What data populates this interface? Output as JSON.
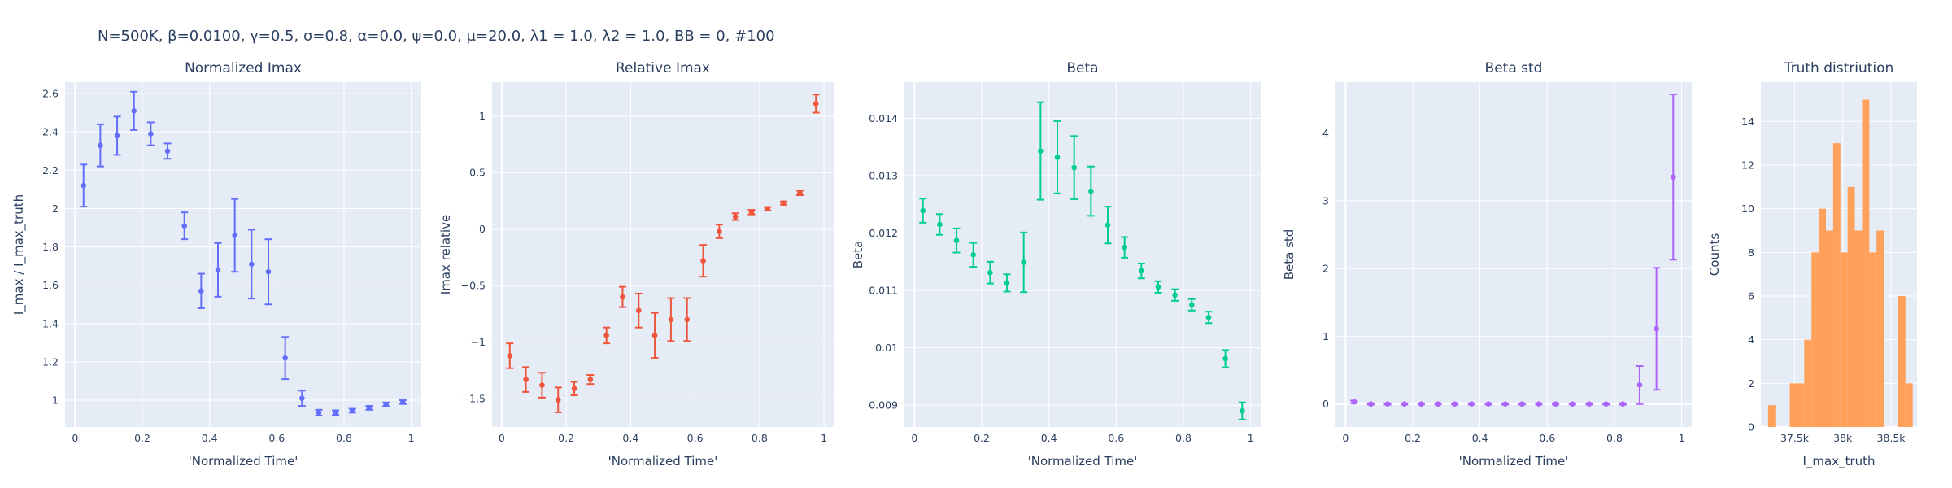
{
  "figure_title": "N=500K, β=0.0100, γ=0.5, σ=0.8,  α=0.0, ψ=0.0, μ=20.0, λ1 = 1.0, λ2 = 1.0, BB = 0, #100",
  "chart_data": [
    {
      "type": "scatter",
      "title": "Normalized Imax",
      "xlabel": "'Normalized Time'",
      "ylabel": "I_max / I_max_truth",
      "color": "#636efa",
      "xlim": [
        -0.03,
        1.03
      ],
      "ylim": [
        0.86,
        2.66
      ],
      "xticks": [
        0,
        0.2,
        0.4,
        0.6,
        0.8,
        1
      ],
      "xtick_labels": [
        "0",
        "0.2",
        "0.4",
        "0.6",
        "0.8",
        "1"
      ],
      "yticks": [
        1,
        1.2,
        1.4,
        1.6,
        1.8,
        2,
        2.2,
        2.4,
        2.6
      ],
      "ytick_labels": [
        "1",
        "1.2",
        "1.4",
        "1.6",
        "1.8",
        "2",
        "2.2",
        "2.4",
        "2.6"
      ],
      "x": [
        0.025,
        0.075,
        0.125,
        0.175,
        0.225,
        0.275,
        0.325,
        0.375,
        0.425,
        0.475,
        0.525,
        0.575,
        0.625,
        0.675,
        0.725,
        0.775,
        0.825,
        0.875,
        0.925,
        0.975
      ],
      "y": [
        2.12,
        2.33,
        2.38,
        2.51,
        2.39,
        2.3,
        1.91,
        1.57,
        1.68,
        1.86,
        1.71,
        1.67,
        1.22,
        1.01,
        0.935,
        0.935,
        0.945,
        0.96,
        0.978,
        0.99
      ],
      "err": [
        0.11,
        0.11,
        0.1,
        0.1,
        0.06,
        0.04,
        0.07,
        0.09,
        0.14,
        0.19,
        0.18,
        0.17,
        0.11,
        0.04,
        0.015,
        0.012,
        0.01,
        0.01,
        0.01,
        0.01
      ]
    },
    {
      "type": "scatter",
      "title": "Relative Imax",
      "xlabel": "'Normalized Time'",
      "ylabel": "Imax relative",
      "color": "#ef553b",
      "xlim": [
        -0.03,
        1.03
      ],
      "ylim": [
        -1.75,
        1.3
      ],
      "xticks": [
        0,
        0.2,
        0.4,
        0.6,
        0.8,
        1
      ],
      "xtick_labels": [
        "0",
        "0.2",
        "0.4",
        "0.6",
        "0.8",
        "1"
      ],
      "yticks": [
        -1.5,
        -1,
        -0.5,
        0,
        0.5,
        1
      ],
      "ytick_labels": [
        "−1.5",
        "−1",
        "−0.5",
        "0",
        "0.5",
        "1"
      ],
      "x": [
        0.025,
        0.075,
        0.125,
        0.175,
        0.225,
        0.275,
        0.325,
        0.375,
        0.425,
        0.475,
        0.525,
        0.575,
        0.625,
        0.675,
        0.725,
        0.775,
        0.825,
        0.875,
        0.925,
        0.975
      ],
      "y": [
        -1.12,
        -1.33,
        -1.38,
        -1.51,
        -1.41,
        -1.33,
        -0.94,
        -0.6,
        -0.72,
        -0.94,
        -0.8,
        -0.8,
        -0.28,
        -0.02,
        0.11,
        0.15,
        0.18,
        0.23,
        0.32,
        1.11
      ],
      "err": [
        0.11,
        0.11,
        0.11,
        0.11,
        0.06,
        0.04,
        0.07,
        0.09,
        0.15,
        0.2,
        0.19,
        0.19,
        0.14,
        0.06,
        0.03,
        0.02,
        0.015,
        0.015,
        0.02,
        0.08
      ]
    },
    {
      "type": "scatter",
      "title": "Beta",
      "xlabel": "'Normalized Time'",
      "ylabel": "Beta",
      "color": "#00cc96",
      "xlim": [
        -0.03,
        1.03
      ],
      "ylim": [
        0.00862,
        0.01463
      ],
      "xticks": [
        0,
        0.2,
        0.4,
        0.6,
        0.8,
        1
      ],
      "xtick_labels": [
        "0",
        "0.2",
        "0.4",
        "0.6",
        "0.8",
        "1"
      ],
      "yticks": [
        0.009,
        0.01,
        0.011,
        0.012,
        0.013,
        0.014
      ],
      "ytick_labels": [
        "0.009",
        "0.01",
        "0.011",
        "0.012",
        "0.013",
        "0.014"
      ],
      "x": [
        0.025,
        0.075,
        0.125,
        0.175,
        0.225,
        0.275,
        0.325,
        0.375,
        0.425,
        0.475,
        0.525,
        0.575,
        0.625,
        0.675,
        0.725,
        0.775,
        0.825,
        0.875,
        0.925,
        0.975
      ],
      "y": [
        0.01239,
        0.01215,
        0.01187,
        0.01162,
        0.01131,
        0.01113,
        0.01149,
        0.01343,
        0.01332,
        0.01314,
        0.01273,
        0.01214,
        0.01175,
        0.01134,
        0.01106,
        0.01092,
        0.01075,
        0.01053,
        0.00981,
        0.0089
      ],
      "err": [
        0.00021,
        0.00018,
        0.00021,
        0.00021,
        0.00019,
        0.00015,
        0.00052,
        0.00085,
        0.00063,
        0.00055,
        0.00043,
        0.00032,
        0.00018,
        0.00013,
        0.0001,
        0.0001,
        0.0001,
        0.0001,
        0.00015,
        0.00015
      ]
    },
    {
      "type": "scatter",
      "title": "Beta std",
      "xlabel": "'Normalized Time'",
      "ylabel": "Beta std",
      "color": "#ab63fa",
      "xlim": [
        -0.03,
        1.03
      ],
      "ylim": [
        -0.34,
        4.75
      ],
      "xticks": [
        0,
        0.2,
        0.4,
        0.6,
        0.8,
        1
      ],
      "xtick_labels": [
        "0",
        "0.2",
        "0.4",
        "0.6",
        "0.8",
        "1"
      ],
      "yticks": [
        0,
        1,
        2,
        3,
        4
      ],
      "ytick_labels": [
        "0",
        "1",
        "2",
        "3",
        "4"
      ],
      "x": [
        0.025,
        0.075,
        0.125,
        0.175,
        0.225,
        0.275,
        0.325,
        0.375,
        0.425,
        0.475,
        0.525,
        0.575,
        0.625,
        0.675,
        0.725,
        0.775,
        0.825,
        0.875,
        0.925,
        0.975
      ],
      "y": [
        0.03,
        0.0,
        0.0,
        0.0,
        0.0,
        0.0,
        0.0,
        0.0,
        0.0,
        0.0,
        0.0,
        0.0,
        0.0,
        0.0,
        0.0,
        0.0,
        0.0,
        0.28,
        1.11,
        3.35
      ],
      "err": [
        0.02,
        0.01,
        0.01,
        0.01,
        0.01,
        0.01,
        0.01,
        0.01,
        0.01,
        0.01,
        0.01,
        0.01,
        0.01,
        0.01,
        0.01,
        0.01,
        0.01,
        0.28,
        0.9,
        1.22
      ]
    },
    {
      "type": "histogram",
      "title": "Truth distriution",
      "xlabel": "I_max_truth",
      "ylabel": "Counts",
      "color": "#ffa15a",
      "xlim": [
        37150,
        38770
      ],
      "ylim": [
        0,
        15.8
      ],
      "xticks": [
        37500,
        38000,
        38500
      ],
      "xtick_labels": [
        "37.5k",
        "38k",
        "38.5k"
      ],
      "yticks": [
        0,
        2,
        4,
        6,
        8,
        10,
        12,
        14
      ],
      "ytick_labels": [
        "0",
        "2",
        "4",
        "6",
        "8",
        "10",
        "12",
        "14"
      ],
      "bin_width": 75,
      "bin_starts": [
        37150,
        37225,
        37300,
        37375,
        37450,
        37525,
        37600,
        37675,
        37750,
        37825,
        37900,
        37975,
        38050,
        38125,
        38200,
        38275,
        38350,
        38425,
        38500,
        38575,
        38650,
        38725
      ],
      "counts": [
        0,
        1,
        0,
        0,
        2,
        2,
        4,
        8,
        10,
        9,
        13,
        8,
        11,
        9,
        15,
        8,
        9,
        0,
        0,
        6,
        2,
        0
      ]
    }
  ]
}
